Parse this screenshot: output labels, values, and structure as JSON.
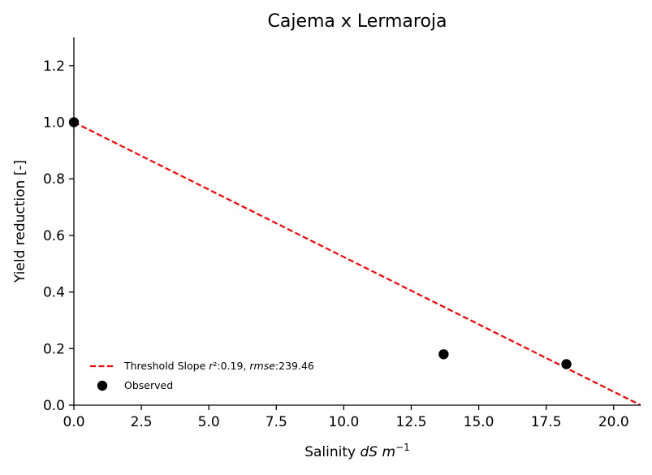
{
  "chart_data": {
    "type": "scatter",
    "title": "Cajema x Lermaroja",
    "xlabel": {
      "prefix": "Salinity ",
      "italic": "dS m",
      "superscript": "−1"
    },
    "ylabel": "Yield reduction [-]",
    "xlim": [
      0,
      21
    ],
    "ylim": [
      0,
      1.3
    ],
    "xticks": [
      0,
      2.5,
      5,
      7.5,
      10,
      12.5,
      15,
      17.5,
      20
    ],
    "xtick_labels": [
      "0.0",
      "2.5",
      "5.0",
      "7.5",
      "10.0",
      "12.5",
      "15.0",
      "17.5",
      "20.0"
    ],
    "yticks": [
      0,
      0.2,
      0.4,
      0.6,
      0.8,
      1.0,
      1.2
    ],
    "ytick_labels": [
      "0.0",
      "0.2",
      "0.4",
      "0.6",
      "0.8",
      "1.0",
      "1.2"
    ],
    "grid": false,
    "legend_position": "lower-left",
    "series": [
      {
        "name": "Threshold Slope r²:0.19, rmse:239.46",
        "kind": "line",
        "style": "dashed",
        "color": "#ff0000",
        "x": [
          0,
          21
        ],
        "y": [
          1.0,
          0.0
        ]
      },
      {
        "name": "Observed",
        "kind": "scatter",
        "color": "#000000",
        "x": [
          0,
          13.7,
          18.25
        ],
        "y": [
          1.0,
          0.18,
          0.145
        ]
      }
    ],
    "legend": [
      {
        "parts": [
          {
            "text": "Threshold Slope "
          },
          {
            "text": "r",
            "italic": true
          },
          {
            "text": "²:0.19, "
          },
          {
            "text": "rmse",
            "italic": true
          },
          {
            "text": ":239.46"
          }
        ]
      },
      {
        "parts": [
          {
            "text": "Observed"
          }
        ]
      }
    ]
  }
}
